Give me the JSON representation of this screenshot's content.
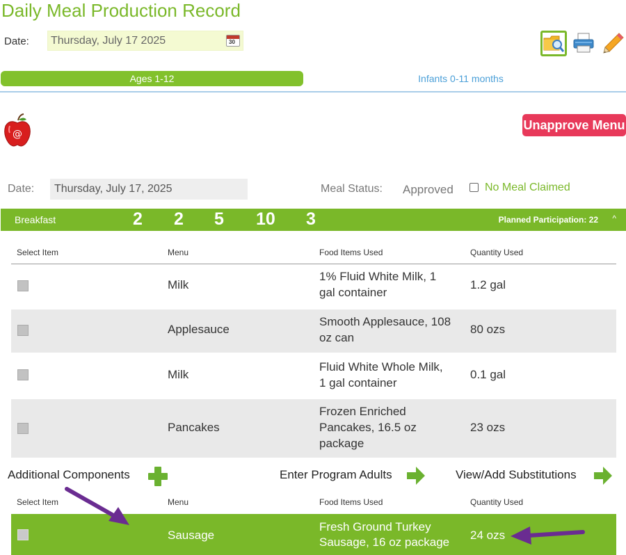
{
  "page": {
    "title": "Daily Meal Production Record",
    "date_label": "Date:",
    "date_value": "Thursday, July 17 2025",
    "calendar_icon_text": "30"
  },
  "toolbar": {
    "icons": [
      "search-folder-icon",
      "printer-icon",
      "pencil-icon"
    ],
    "accent": "#7ab829"
  },
  "tabs": [
    {
      "label": "Ages 1-12",
      "active": true
    },
    {
      "label": "Infants 0-11 months",
      "active": false
    }
  ],
  "menu": {
    "logo": "apple-logo-icon",
    "unapprove_label": "Unapprove Menu",
    "unapprove_color": "#e8395a"
  },
  "meal_info": {
    "date_label": "Date:",
    "date_value": "Thursday, July 17, 2025",
    "status_label": "Meal Status:",
    "status_value": "Approved",
    "no_meal_label": "No Meal Claimed",
    "no_meal_checked": false
  },
  "meal_bar": {
    "name": "Breakfast",
    "counts": [
      "2",
      "2",
      "5",
      "10",
      "3"
    ],
    "planned": "Planned Participation: 22",
    "caret": "^"
  },
  "table": {
    "headers": [
      "Select Item",
      "Menu",
      "Food Items Used",
      "Quantity Used"
    ],
    "rows": [
      {
        "menu": "Milk",
        "food_1": "1% Fluid White Milk, 1",
        "food_2": "gal container",
        "food_3": "",
        "qty": "1.2 gal"
      },
      {
        "menu": "Applesauce",
        "food_1": "Smooth Applesauce, 108",
        "food_2": "oz can",
        "food_3": "",
        "qty": "80 ozs"
      },
      {
        "menu": "Milk",
        "food_1": "Fluid White Whole Milk,",
        "food_2": "1 gal container",
        "food_3": "",
        "qty": "0.1 gal"
      },
      {
        "menu": "Pancakes",
        "food_1": "Frozen Enriched",
        "food_2": "Pancakes, 16.5 oz",
        "food_3": "package",
        "qty": "23 ozs"
      }
    ]
  },
  "actions": {
    "additional": "Additional Components",
    "program_adults": "Enter Program Adults",
    "substitutions": "View/Add Substitutions"
  },
  "additional_table": {
    "headers": [
      "Select Item",
      "Menu",
      "Food Items Used",
      "Quantity Used"
    ],
    "rows": [
      {
        "menu": "Sausage",
        "food_1": "Fresh Ground Turkey",
        "food_2": "Sausage, 16 oz package",
        "qty": "24 ozs"
      }
    ],
    "highlight_color": "#7ab829"
  },
  "annotations": {
    "arrow_color": "#6a2c91"
  }
}
